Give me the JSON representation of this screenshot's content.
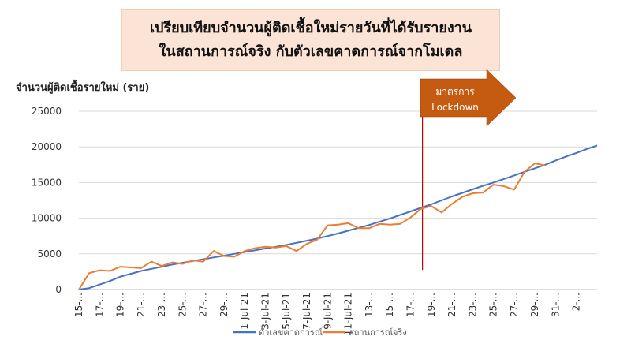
{
  "header": {
    "title_line1": "เปรียบเทียบจำนวนผู้ติดเชื้อใหม่รายวันที่ได้รับรายงาน",
    "title_line2": "ในสถานการณ์จริง กับตัวเลขคาดการณ์จากโมเดล"
  },
  "annotation": {
    "line1": "มาตรการ",
    "line2": "Lockdown",
    "color": "#c55a11",
    "line_color": "#c00000",
    "x_index": 33
  },
  "colors": {
    "model": "#4472c4",
    "actual": "#ed7d31",
    "grid": "#d9d9d9"
  },
  "chart_data": {
    "type": "line",
    "ylabel": "จำนวนผู้ติดเชื้อรายใหม่ (ราย)",
    "ylim": [
      0,
      25000
    ],
    "yticks": [
      "0",
      "5000",
      "10000",
      "15000",
      "20000",
      "25000"
    ],
    "xtick_labels": [
      {
        "i": 0,
        "text": "15-..."
      },
      {
        "i": 2,
        "text": "17-..."
      },
      {
        "i": 4,
        "text": "19-..."
      },
      {
        "i": 6,
        "text": "21-..."
      },
      {
        "i": 8,
        "text": "23-..."
      },
      {
        "i": 10,
        "text": "25-..."
      },
      {
        "i": 12,
        "text": "27-..."
      },
      {
        "i": 14,
        "text": "29-..."
      },
      {
        "i": 16,
        "text": "1-Jul-21"
      },
      {
        "i": 18,
        "text": "3-Jul-21"
      },
      {
        "i": 20,
        "text": "5-Jul-21"
      },
      {
        "i": 22,
        "text": "7-Jul-21"
      },
      {
        "i": 24,
        "text": "9-Jul-21"
      },
      {
        "i": 26,
        "text": "11-Jul-21"
      },
      {
        "i": 28,
        "text": "13-..."
      },
      {
        "i": 30,
        "text": "15-..."
      },
      {
        "i": 32,
        "text": "17-..."
      },
      {
        "i": 34,
        "text": "19-..."
      },
      {
        "i": 36,
        "text": "21-..."
      },
      {
        "i": 38,
        "text": "23-..."
      },
      {
        "i": 40,
        "text": "25-..."
      },
      {
        "i": 42,
        "text": "27-..."
      },
      {
        "i": 44,
        "text": "29-..."
      },
      {
        "i": 46,
        "text": "31-..."
      },
      {
        "i": 48,
        "text": "2-..."
      }
    ],
    "series": [
      {
        "name": "ตัวเลขคาดการณ์",
        "values": [
          0,
          200,
          700,
          1200,
          1800,
          2200,
          2600,
          2900,
          3200,
          3500,
          3750,
          4000,
          4250,
          4500,
          4750,
          5000,
          5250,
          5500,
          5750,
          6000,
          6250,
          6550,
          6850,
          7150,
          7500,
          7850,
          8250,
          8650,
          9050,
          9500,
          9950,
          10450,
          10950,
          11450,
          11950,
          12500,
          13050,
          13550,
          14050,
          14550,
          15000,
          15500,
          16000,
          16500,
          17000,
          17500,
          18100,
          18650,
          19150,
          19700,
          20200
        ]
      },
      {
        "name": "สถานการณ์จริง",
        "values": [
          0,
          2300,
          2700,
          2600,
          3200,
          3100,
          3000,
          3900,
          3300,
          3800,
          3600,
          4100,
          3900,
          5400,
          4700,
          4600,
          5400,
          5800,
          6000,
          5900,
          6100,
          5400,
          6400,
          7000,
          9000,
          9100,
          9300,
          8600,
          8600,
          9200,
          9100,
          9200,
          10100,
          11300,
          11700,
          10800,
          12000,
          13000,
          13500,
          13600,
          14700,
          14500,
          14000,
          16500,
          17700,
          17400
        ]
      }
    ]
  }
}
